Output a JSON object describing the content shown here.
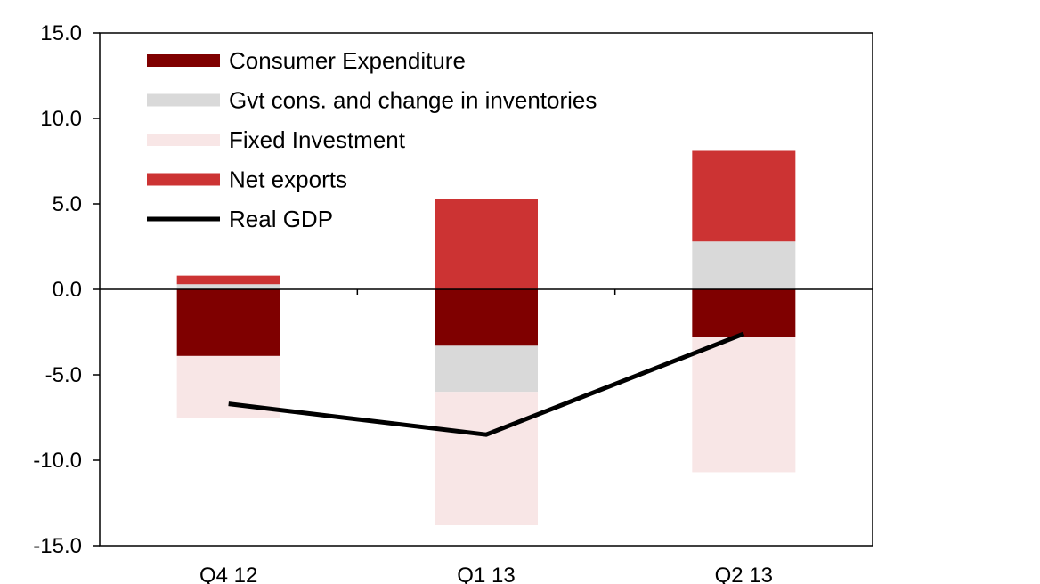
{
  "chart_data": {
    "type": "bar",
    "stacked": true,
    "title": "",
    "xlabel": "",
    "ylabel": "",
    "categories": [
      "Q4 12",
      "Q1 13",
      "Q2 13"
    ],
    "ylim": [
      -15.0,
      15.0
    ],
    "yticks": [
      "15.0",
      "10.0",
      "5.0",
      "0.0",
      "-5.0",
      "-10.0",
      "-15.0"
    ],
    "ytick_values": [
      15,
      10,
      5,
      0,
      -5,
      -10,
      -15
    ],
    "grid": false,
    "legend_position": "top-left",
    "series": [
      {
        "name": "Consumer Expenditure",
        "color": "#7f0000",
        "values": [
          -3.9,
          -3.3,
          -2.8
        ]
      },
      {
        "name": "Gvt cons. and change in inventories",
        "color": "#d9d9d9",
        "values": [
          0.3,
          -2.7,
          2.8
        ]
      },
      {
        "name": "Fixed Investment",
        "color": "#f8e6e6",
        "values": [
          -3.6,
          -7.8,
          -7.9
        ]
      },
      {
        "name": "Net exports",
        "color": "#cc3333",
        "values": [
          0.5,
          5.3,
          5.3
        ]
      }
    ],
    "line": {
      "name": "Real GDP",
      "color": "#000000",
      "values": [
        -6.7,
        -8.5,
        -2.6
      ]
    }
  }
}
